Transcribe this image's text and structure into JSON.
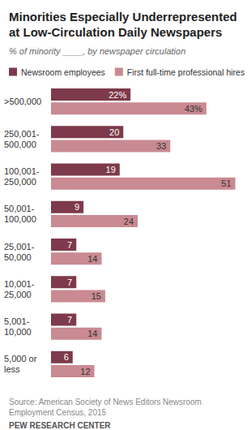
{
  "chart_data": {
    "type": "bar",
    "title": "Minorities Especially Underrepresented at Low-Circulation Daily Newspapers",
    "subtitle": "% of minority ____, by newspaper circulation",
    "categories": [
      ">500,000",
      "250,001-500,000",
      "100,001-250,000",
      "50,001-100,000",
      "25,001-50,000",
      "10,001-25,000",
      "5,001-10,000",
      "5,000 or less"
    ],
    "series": [
      {
        "name": "Newsroom employees",
        "color": "#7d3a4a",
        "values": [
          22,
          20,
          19,
          9,
          7,
          7,
          7,
          6
        ],
        "value_labels": [
          "22%",
          "20",
          "19",
          "9",
          "7",
          "7",
          "7",
          "6"
        ]
      },
      {
        "name": "First full-time professional hires",
        "color": "#c98a92",
        "values": [
          43,
          33,
          51,
          24,
          14,
          15,
          14,
          12
        ],
        "value_labels": [
          "43%",
          "33",
          "51",
          "24",
          "14",
          "15",
          "14",
          "12"
        ]
      }
    ],
    "orientation": "horizontal",
    "xlim": [
      0,
      54
    ],
    "data_labels": true,
    "grid": false,
    "legend": "top-left",
    "tick_labels": "y",
    "source": "Source: American Society of News Editors Newsroom Employment Census, 2015",
    "credit": "PEW RESEARCH CENTER"
  }
}
